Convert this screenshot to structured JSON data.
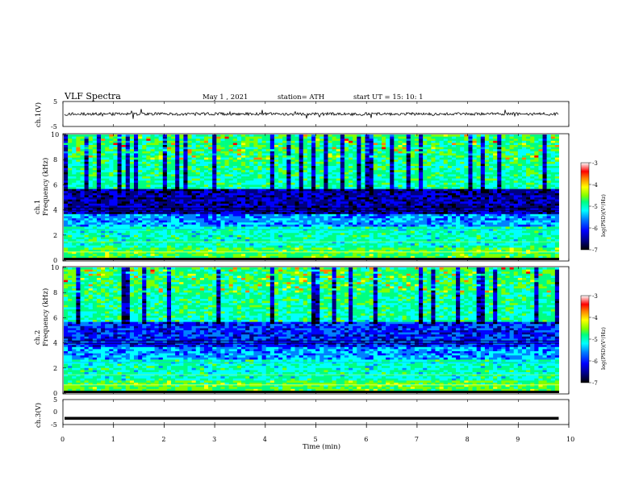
{
  "header": {
    "title": "VLF  Spectra",
    "date": "May 1  , 2021",
    "station": "station= ATH",
    "start": "start  UT  =    15: 10: 1"
  },
  "chart_data": [
    {
      "type": "line",
      "id": "ch1-waveform",
      "ylabel": "ch.1(V)",
      "ylim": [
        -5,
        5
      ],
      "yticks": [
        "5",
        "-5"
      ],
      "xlim": [
        0,
        10
      ],
      "description_note": "",
      "baseline": 0,
      "series": [
        {
          "values": [
            0.3,
            -0.2,
            0.5,
            -0.4,
            0.2,
            0.1,
            -0.3,
            0.4
          ]
        }
      ]
    },
    {
      "type": "heatmap",
      "id": "ch1-spectrogram",
      "ylabel": "ch.1\nFrequency  (kHz)",
      "xlim": [
        0,
        9.8
      ],
      "ylim": [
        0,
        10
      ],
      "yticks": [
        "10",
        "8",
        "6",
        "4",
        "2",
        "0"
      ]
    },
    {
      "type": "heatmap",
      "id": "ch2-spectrogram",
      "ylabel": "ch.2\nFrequency  (kHz)",
      "xlim": [
        0,
        9.8
      ],
      "ylim": [
        0,
        10
      ],
      "yticks": [
        "10",
        "8",
        "6",
        "4",
        "2",
        "0"
      ]
    },
    {
      "type": "line",
      "id": "ch3-waveform",
      "ylabel": "ch.3(V)",
      "ylim": [
        -5,
        5
      ],
      "yticks": [
        "5",
        "0",
        "-5"
      ],
      "xlim": [
        0,
        9.8
      ],
      "series": [
        {
          "values": [
            -2.5,
            -2.5
          ]
        }
      ]
    }
  ],
  "xaxis": {
    "label": "Time  (min)",
    "ticks": [
      "0",
      "1",
      "2",
      "3",
      "4",
      "5",
      "6",
      "7",
      "8",
      "9",
      "10"
    ],
    "range": [
      0,
      10
    ]
  },
  "colorbar": {
    "label": "log(PSD)(V²/Hz)",
    "ticks": [
      "-3",
      "-4",
      "-5",
      "-6",
      "-7"
    ],
    "range": [
      -7,
      -3
    ]
  },
  "colors": {
    "colormap": [
      "#000000",
      "#00007f",
      "#0000ff",
      "#0080ff",
      "#00ffff",
      "#00ff80",
      "#80ff00",
      "#ffff00",
      "#ff8000",
      "#ff0000",
      "#ffffff"
    ]
  }
}
